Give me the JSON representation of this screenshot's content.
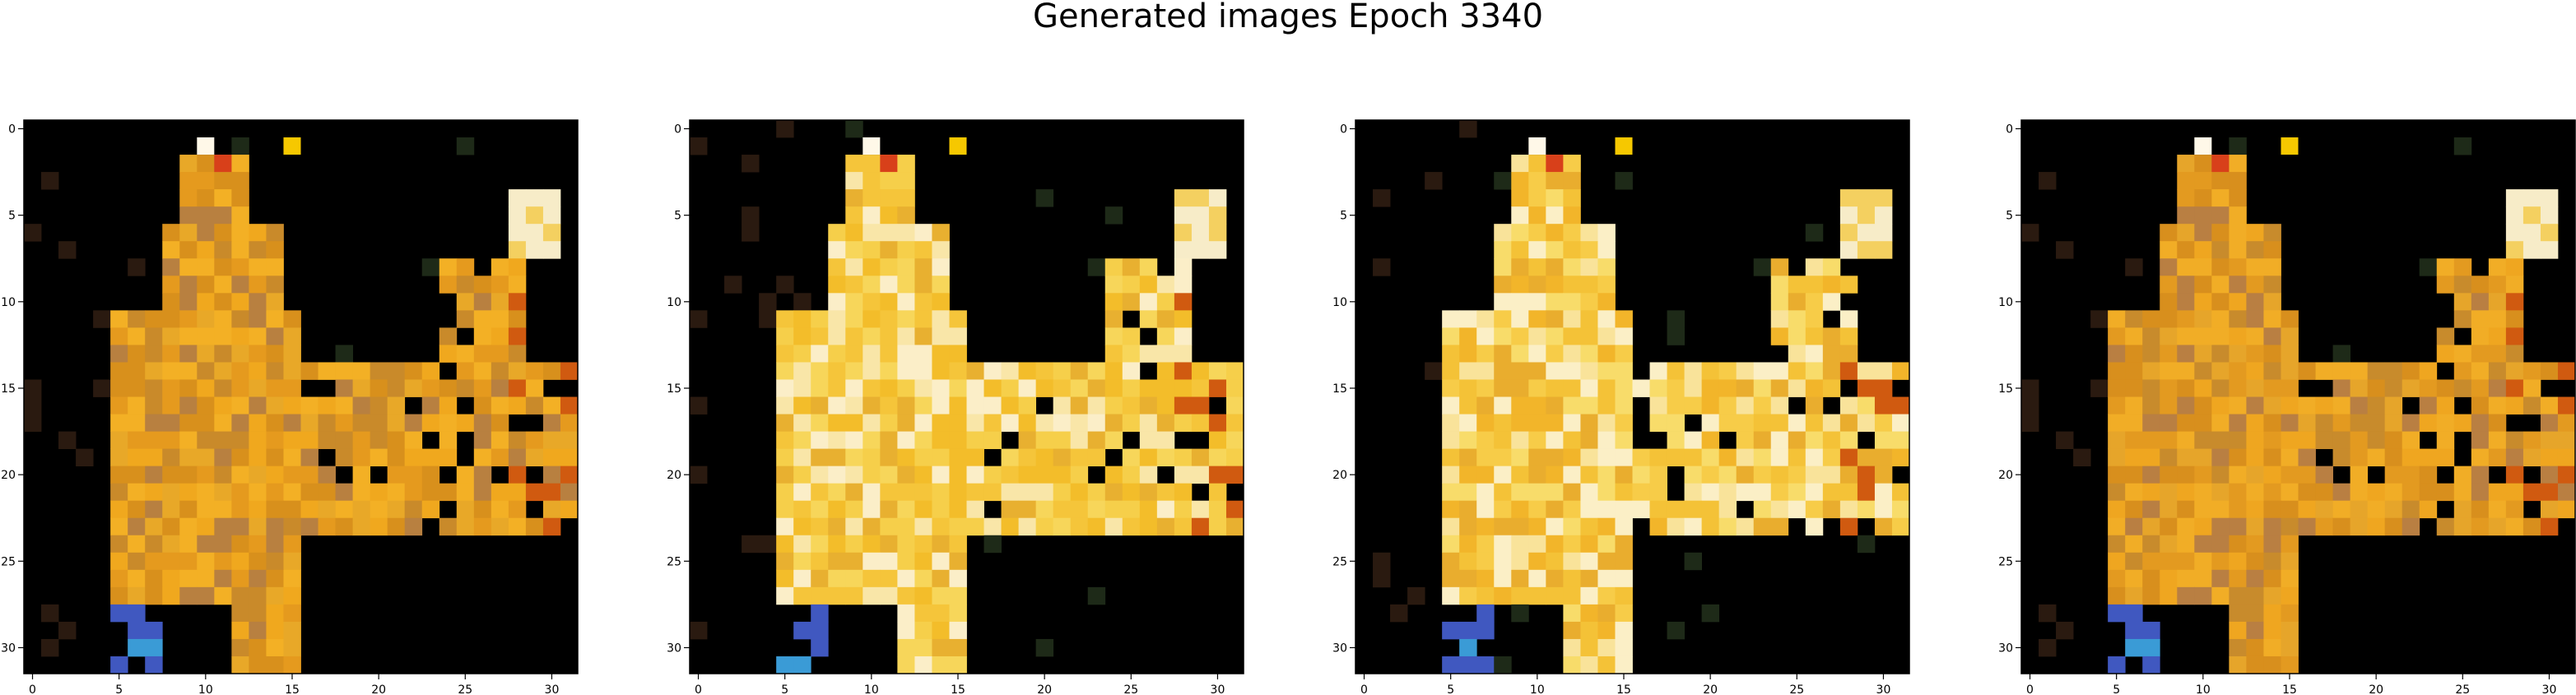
{
  "title": "Generated images Epoch 3340",
  "panels": [
    {
      "name": "generated-image-1"
    },
    {
      "name": "generated-image-2"
    },
    {
      "name": "generated-image-3"
    },
    {
      "name": "generated-image-4"
    }
  ],
  "axes": {
    "x_ticks": [
      0,
      5,
      10,
      15,
      20,
      25,
      30
    ],
    "y_ticks": [
      0,
      5,
      10,
      15,
      20,
      25,
      30
    ],
    "grid_size": 32
  },
  "colors": {
    "background": "#000000",
    "orange": "#e8a020",
    "yellow": "#f5c542",
    "cream": "#f7ecc8",
    "blue": "#2f6fb0",
    "light_blue": "#9ab8e0"
  }
}
